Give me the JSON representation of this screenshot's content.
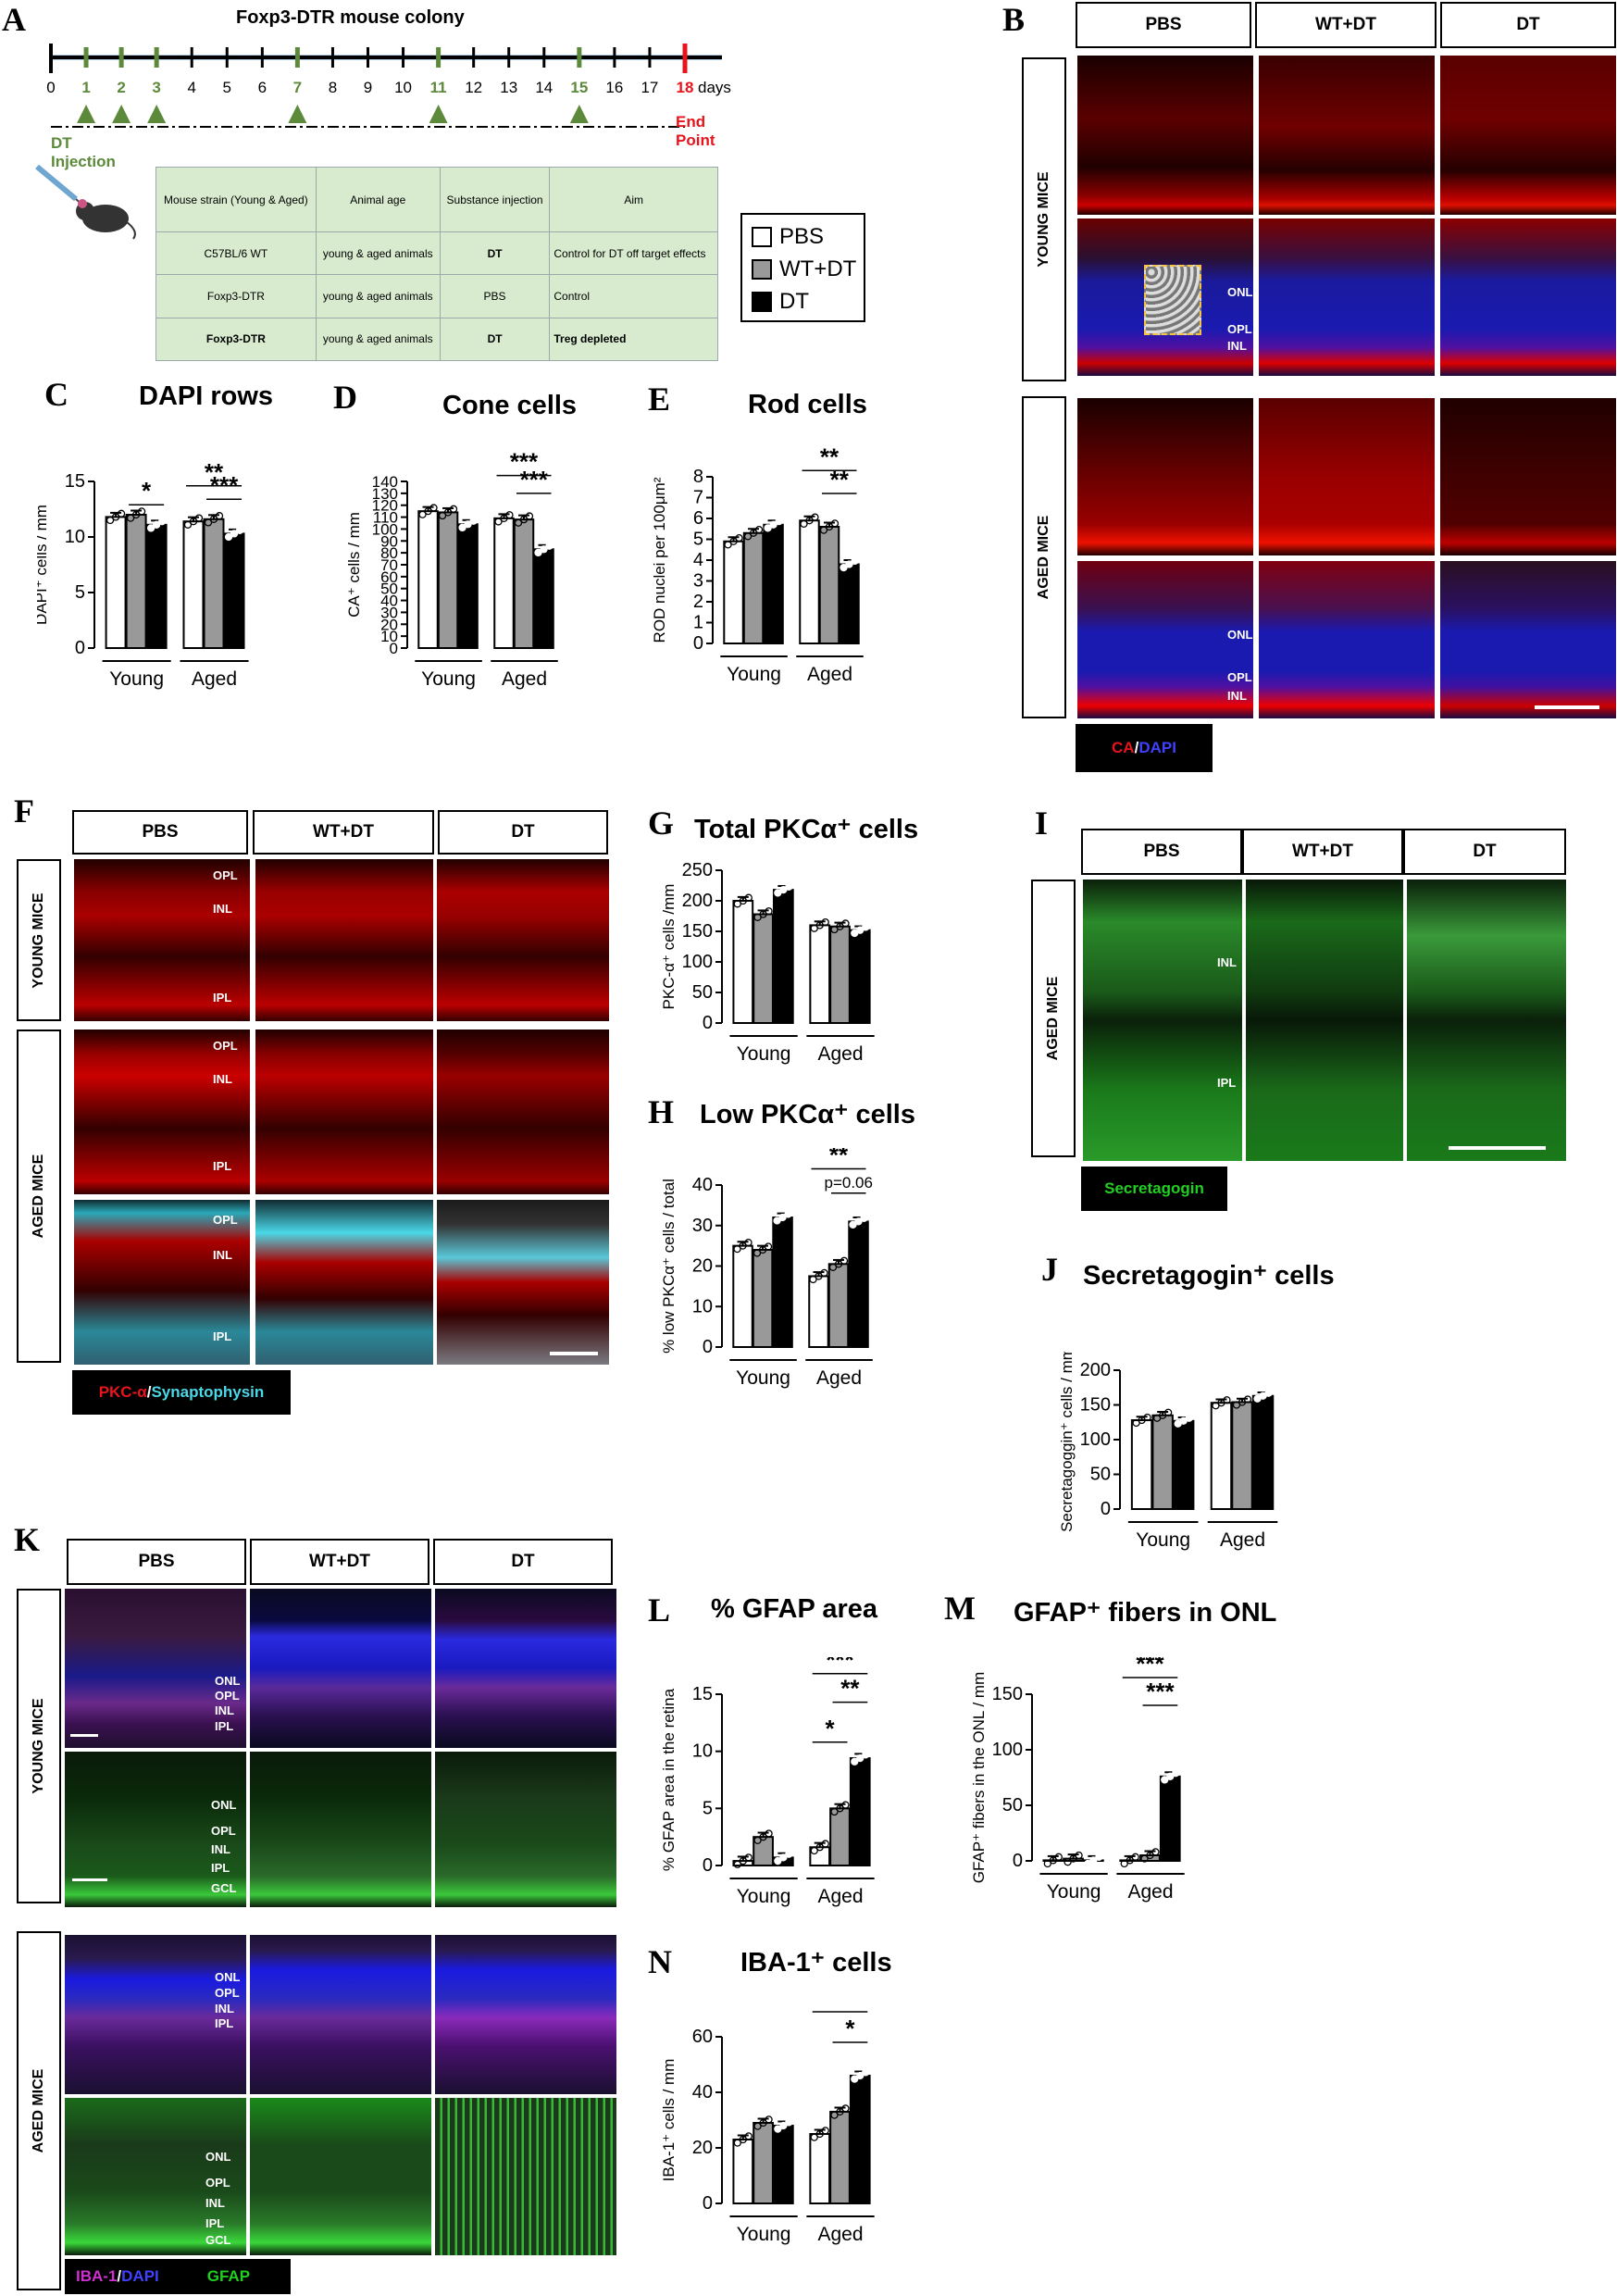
{
  "panel_A": {
    "letter": "A",
    "title": "Foxp3-DTR mouse colony",
    "days": [
      "0",
      "1",
      "2",
      "3",
      "4",
      "5",
      "6",
      "7",
      "8",
      "9",
      "10",
      "11",
      "12",
      "13",
      "14",
      "15",
      "16",
      "17",
      "18"
    ],
    "days_unit": "days",
    "injection_days": [
      "1",
      "2",
      "3",
      "7",
      "11",
      "15"
    ],
    "injection_label": "DT Injection",
    "endpoint_label": "End Point",
    "table": {
      "headers": [
        "Mouse strain (Young & Aged)",
        "Animal age",
        "Substance injection",
        "Aim"
      ],
      "rows": [
        [
          "C57BL/6 WT",
          "young & aged animals",
          "DT",
          "Control for DT off target effects"
        ],
        [
          "Foxp3-DTR",
          "young & aged animals",
          "PBS",
          "Control"
        ],
        [
          "Foxp3-DTR",
          "young & aged animals",
          "DT",
          "Treg depleted"
        ]
      ]
    },
    "legend": [
      "PBS",
      "WT+DT",
      "DT"
    ]
  },
  "panel_B": {
    "letter": "B",
    "columns": [
      "PBS",
      "WT+DT",
      "DT"
    ],
    "rows": [
      "YOUNG MICE",
      "AGED MICE"
    ],
    "layer_labels": [
      "ONL",
      "OPL",
      "INL"
    ],
    "stain_legend": [
      "CA",
      "/ ",
      "DAPI"
    ]
  },
  "panel_F": {
    "letter": "F",
    "columns": [
      "PBS",
      "WT+DT",
      "DT"
    ],
    "rows": [
      "YOUNG MICE",
      "AGED MICE"
    ],
    "layer_labels": [
      "OPL",
      "INL",
      "IPL"
    ],
    "stain_legend": [
      "PKC-α",
      "/",
      "Synaptophysin"
    ]
  },
  "panel_I": {
    "letter": "I",
    "columns": [
      "PBS",
      "WT+DT",
      "DT"
    ],
    "row": "AGED MICE",
    "layer_labels": [
      "INL",
      "IPL"
    ],
    "stain_legend": [
      "Secretagogin"
    ]
  },
  "panel_K": {
    "letter": "K",
    "columns": [
      "PBS",
      "WT+DT",
      "DT"
    ],
    "rows": [
      "YOUNG MICE",
      "AGED MICE"
    ],
    "layer_labels_top": [
      "ONL",
      "OPL",
      "INL",
      "IPL"
    ],
    "layer_labels_bottom": [
      "ONL",
      "OPL",
      "INL",
      "IPL",
      "GCL"
    ],
    "stain_legend": [
      "IBA-1",
      "/ ",
      "DAPI",
      "GFAP"
    ]
  },
  "colors": {
    "pbs": "#ffffff",
    "wtdt": "#999999",
    "dt": "#000000",
    "green": "#5c8a3a",
    "red": "#e8141c",
    "tl_blue": "#aecbe6"
  },
  "chart_data": [
    {
      "id": "C",
      "type": "bar",
      "title": "DAPI rows",
      "ylabel": "DAPI⁺ cells / mm",
      "ylim": [
        0,
        15
      ],
      "yticks": [
        0,
        5,
        10,
        15
      ],
      "groups": [
        "Young",
        "Aged"
      ],
      "series": [
        {
          "name": "PBS",
          "values": [
            11.8,
            11.4
          ]
        },
        {
          "name": "WT+DT",
          "values": [
            12.0,
            11.6
          ]
        },
        {
          "name": "DT",
          "values": [
            11.1,
            10.3
          ]
        }
      ],
      "annotations": [
        "*",
        "**",
        "***"
      ]
    },
    {
      "id": "D",
      "type": "bar",
      "title": "Cone cells",
      "ylabel": "CA⁺ cells / mm",
      "ylim": [
        0,
        140
      ],
      "yticks": [
        0,
        10,
        20,
        30,
        40,
        50,
        60,
        70,
        80,
        90,
        100,
        110,
        120,
        130,
        140
      ],
      "groups": [
        "Young",
        "Aged"
      ],
      "series": [
        {
          "name": "PBS",
          "values": [
            115,
            109
          ]
        },
        {
          "name": "WT+DT",
          "values": [
            114,
            108
          ]
        },
        {
          "name": "DT",
          "values": [
            104,
            83
          ]
        }
      ],
      "annotations": [
        "***",
        "***"
      ]
    },
    {
      "id": "E",
      "type": "bar",
      "title": "Rod cells",
      "ylabel": "ROD nuclei per 100μm²",
      "ylim": [
        0,
        8
      ],
      "yticks": [
        0,
        1,
        2,
        3,
        4,
        5,
        6,
        7,
        8
      ],
      "groups": [
        "Young",
        "Aged"
      ],
      "series": [
        {
          "name": "PBS",
          "values": [
            4.9,
            5.9
          ]
        },
        {
          "name": "WT+DT",
          "values": [
            5.3,
            5.6
          ]
        },
        {
          "name": "DT",
          "values": [
            5.7,
            3.8
          ]
        }
      ],
      "annotations": [
        "**",
        "**"
      ]
    },
    {
      "id": "G",
      "type": "bar",
      "title": "Total PKCα⁺ cells",
      "ylabel": "PKC-α⁺ cells /mm",
      "ylim": [
        0,
        250
      ],
      "yticks": [
        0,
        50,
        100,
        150,
        200,
        250
      ],
      "groups": [
        "Young",
        "Aged"
      ],
      "series": [
        {
          "name": "PBS",
          "values": [
            200,
            160
          ]
        },
        {
          "name": "WT+DT",
          "values": [
            178,
            158
          ]
        },
        {
          "name": "DT",
          "values": [
            218,
            152
          ]
        }
      ],
      "annotations": []
    },
    {
      "id": "H",
      "type": "bar",
      "title": "Low PKCα⁺ cells",
      "ylabel": "% low PKCα⁺ cells / total",
      "ylim": [
        0,
        40
      ],
      "yticks": [
        0,
        10,
        20,
        30,
        40
      ],
      "groups": [
        "Young",
        "Aged"
      ],
      "series": [
        {
          "name": "PBS",
          "values": [
            25,
            17.5
          ]
        },
        {
          "name": "WT+DT",
          "values": [
            24,
            20.5
          ]
        },
        {
          "name": "DT",
          "values": [
            32,
            31
          ]
        }
      ],
      "annotations": [
        "**",
        "p=0.06"
      ]
    },
    {
      "id": "J",
      "type": "bar",
      "title": "Secretagogin⁺ cells",
      "ylabel": "Secretagoggin⁺ cells / mm",
      "ylim": [
        0,
        200
      ],
      "yticks": [
        0,
        50,
        100,
        150,
        200
      ],
      "groups": [
        "Young",
        "Aged"
      ],
      "series": [
        {
          "name": "PBS",
          "values": [
            128,
            153
          ]
        },
        {
          "name": "WT+DT",
          "values": [
            135,
            154
          ]
        },
        {
          "name": "DT",
          "values": [
            127,
            163
          ]
        }
      ],
      "annotations": []
    },
    {
      "id": "L",
      "type": "bar",
      "title": "% GFAP area",
      "ylabel": "% GFAP area in the retina",
      "ylim": [
        0,
        15
      ],
      "yticks": [
        0,
        5,
        10,
        15
      ],
      "groups": [
        "Young",
        "Aged"
      ],
      "series": [
        {
          "name": "PBS",
          "values": [
            0.4,
            1.6
          ]
        },
        {
          "name": "WT+DT",
          "values": [
            2.5,
            5.0
          ]
        },
        {
          "name": "DT",
          "values": [
            0.7,
            9.4
          ]
        }
      ],
      "annotations": [
        "***",
        "**",
        "*"
      ]
    },
    {
      "id": "M",
      "type": "bar",
      "title": "GFAP⁺ fibers in ONL",
      "ylabel": "GFAP⁺ fibers in the ONL / mm",
      "ylim": [
        0,
        150
      ],
      "yticks": [
        0,
        50,
        100,
        150
      ],
      "groups": [
        "Young",
        "Aged"
      ],
      "series": [
        {
          "name": "PBS",
          "values": [
            0.5,
            0.5
          ]
        },
        {
          "name": "WT+DT",
          "values": [
            2,
            5
          ]
        },
        {
          "name": "DT",
          "values": [
            0.5,
            76
          ]
        }
      ],
      "annotations": [
        "***",
        "***"
      ]
    },
    {
      "id": "N",
      "type": "bar",
      "title": "IBA-1⁺ cells",
      "ylabel": "IBA-1⁺ cells / mm",
      "ylim": [
        0,
        60
      ],
      "yticks": [
        0,
        20,
        40,
        60
      ],
      "groups": [
        "Young",
        "Aged"
      ],
      "series": [
        {
          "name": "PBS",
          "values": [
            23,
            25
          ]
        },
        {
          "name": "WT+DT",
          "values": [
            29,
            33
          ]
        },
        {
          "name": "DT",
          "values": [
            28,
            46
          ]
        }
      ],
      "annotations": [
        "***",
        "*"
      ]
    }
  ]
}
